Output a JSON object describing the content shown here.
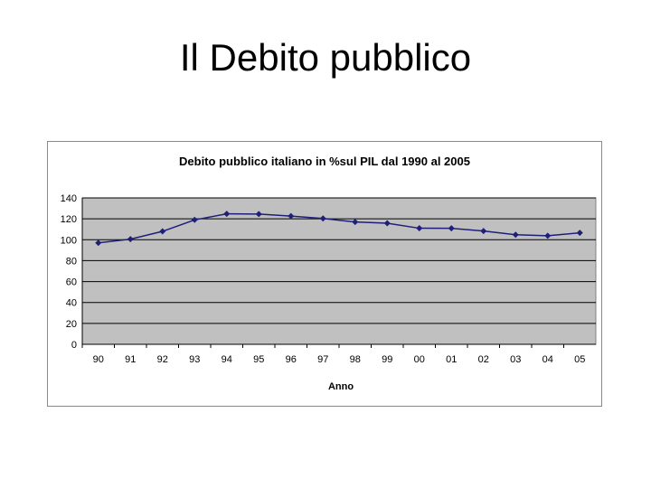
{
  "slide": {
    "title": "Il Debito pubblico"
  },
  "chart_data": {
    "type": "line",
    "title": "Debito pubblico italiano in %sul PIL dal 1990 al 2005",
    "xlabel": "Anno",
    "ylabel": "",
    "categories": [
      "90",
      "91",
      "92",
      "93",
      "94",
      "95",
      "96",
      "97",
      "98",
      "99",
      "00",
      "01",
      "02",
      "03",
      "04",
      "05"
    ],
    "series": [
      {
        "values": [
          97,
          100.6,
          108,
          119,
          124.8,
          124.6,
          122.6,
          120.3,
          117,
          115.8,
          111,
          110.9,
          108.3,
          104.8,
          103.8,
          106.6
        ]
      }
    ],
    "ylim": [
      0,
      140
    ],
    "yticks": [
      0,
      20,
      40,
      60,
      80,
      100,
      120,
      140
    ],
    "grid": true,
    "colors": {
      "line": "#1f1f7a",
      "plot_background": "#c0c0c0",
      "gridline": "#000000"
    }
  }
}
